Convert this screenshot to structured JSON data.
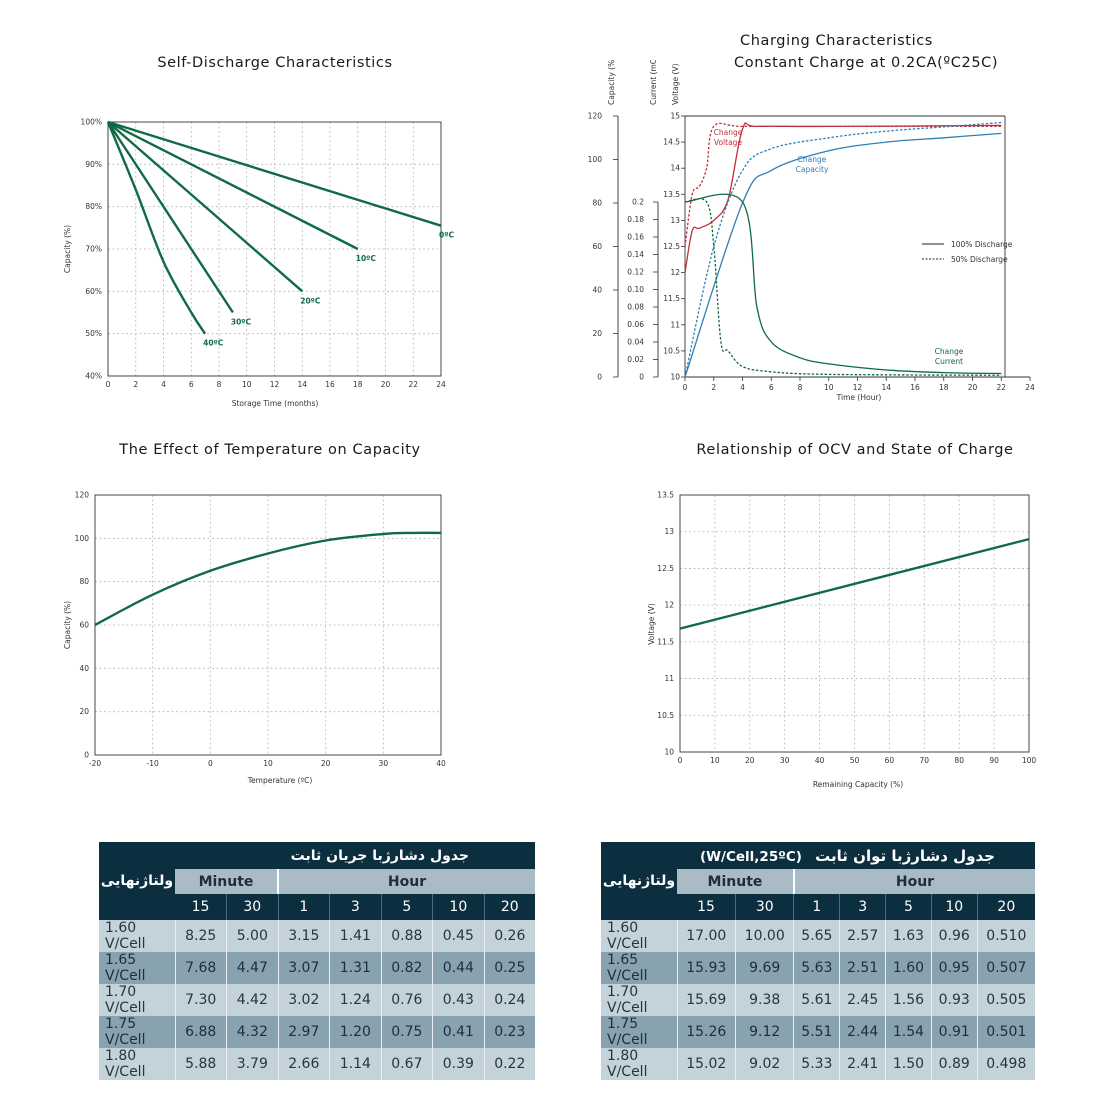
{
  "charts": {
    "self_discharge": {
      "title": "Self-Discharge Characteristics",
      "ylabel": "Capacity (%)",
      "xlabel": "Storage Time (months)",
      "yticks": [
        "40%",
        "50%",
        "60%",
        "70%",
        "80%",
        "90%",
        "100%"
      ],
      "xticks": [
        "0",
        "2",
        "4",
        "6",
        "8",
        "10",
        "12",
        "14",
        "16",
        "18",
        "20",
        "22",
        "24"
      ]
    },
    "charging": {
      "title_line1": "Charging Characteristics",
      "title_line2": "Constant Charge at 0.2CA(ºC25C)",
      "axis_capacity": "Capacity (%)",
      "axis_current": "Current (mCA)",
      "axis_voltage": "Voltage (V)",
      "xlabel": "Time (Hour)",
      "cap_ticks": [
        "0",
        "20",
        "40",
        "60",
        "80",
        "100",
        "120"
      ],
      "cur_ticks": [
        "0",
        "0.02",
        "0.04",
        "0.06",
        "0.08",
        "0.10",
        "0.12",
        "0.14",
        "0.16",
        "0.18",
        "0.2"
      ],
      "volt_ticks": [
        "10",
        "10.5",
        "11",
        "11.5",
        "12",
        "12.5",
        "13",
        "13.5",
        "14",
        "14.5",
        "15"
      ],
      "xticks": [
        "0",
        "2",
        "4",
        "6",
        "8",
        "10",
        "12",
        "14",
        "16",
        "18",
        "20",
        "22",
        "24"
      ],
      "label_voltage_1": "Change",
      "label_voltage_2": "Voltage",
      "label_capacity_1": "Change",
      "label_capacity_2": "Capacity",
      "label_current_1": "Change",
      "label_current_2": "Current",
      "legend_full": "100% Discharge",
      "legend_half": "50% Discharge"
    },
    "temperature": {
      "title": "The Effect of Temperature on Capacity",
      "ylabel": "Capacity (%)",
      "xlabel": "Temperature (ºC)",
      "yticks": [
        "0",
        "20",
        "40",
        "60",
        "80",
        "100",
        "120"
      ],
      "xticks": [
        "-20",
        "-10",
        "0",
        "10",
        "20",
        "30",
        "40"
      ]
    },
    "ocv": {
      "title": "Relationship of OCV and State of Charge",
      "ylabel": "Voltage (V)",
      "xlabel": "Remaining Capacity (%)",
      "yticks": [
        "10",
        "10.5",
        "11",
        "11.5",
        "12",
        "12.5",
        "13",
        "13.5"
      ],
      "xticks": [
        "0",
        "10",
        "20",
        "30",
        "40",
        "50",
        "60",
        "70",
        "80",
        "90",
        "100"
      ]
    }
  },
  "chart_data": [
    {
      "type": "line",
      "title": "Self-Discharge Characteristics",
      "xlabel": "Storage Time (months)",
      "ylabel": "Capacity (%)",
      "xlim": [
        0,
        24
      ],
      "ylim": [
        40,
        100
      ],
      "grid": true,
      "series": [
        {
          "name": "0ºC",
          "x": [
            0,
            24
          ],
          "y": [
            100,
            75.5
          ]
        },
        {
          "name": "10ºC",
          "x": [
            0,
            18
          ],
          "y": [
            100,
            70
          ]
        },
        {
          "name": "20ºC",
          "x": [
            0,
            14
          ],
          "y": [
            100,
            60
          ]
        },
        {
          "name": "30ºC",
          "x": [
            0,
            9
          ],
          "y": [
            100,
            55
          ]
        },
        {
          "name": "40ºC",
          "x": [
            0,
            2,
            4,
            6,
            7
          ],
          "y": [
            100,
            84,
            67,
            55,
            50
          ]
        }
      ]
    },
    {
      "type": "line",
      "title": "Charging Characteristics Constant Charge at 0.2CA(ºC25C)",
      "xlabel": "Time (Hour)",
      "xlim": [
        0,
        24
      ],
      "axes": {
        "capacity": [
          0,
          120
        ],
        "current": [
          0,
          0.2
        ],
        "voltage": [
          10,
          15
        ]
      },
      "grid": false,
      "series": [
        {
          "name": "Change Voltage",
          "axis": "voltage",
          "style": "100% Discharge",
          "x": [
            0,
            0.5,
            1,
            2,
            3,
            4,
            5,
            10,
            22
          ],
          "y": [
            12.0,
            12.8,
            12.85,
            13.0,
            13.4,
            14.75,
            14.8,
            14.8,
            14.82
          ]
        },
        {
          "name": "Change Voltage",
          "axis": "voltage",
          "style": "50% Discharge",
          "x": [
            0,
            0.5,
            1,
            1.5,
            2,
            4,
            10,
            22
          ],
          "y": [
            12.5,
            13.5,
            13.65,
            14.0,
            14.8,
            14.8,
            14.8,
            14.8
          ]
        },
        {
          "name": "Change Capacity",
          "axis": "capacity",
          "style": "100% Discharge",
          "x": [
            0,
            4,
            6,
            10,
            14,
            18,
            22
          ],
          "y": [
            0,
            80,
            95,
            104,
            108,
            110,
            112
          ]
        },
        {
          "name": "Change Capacity",
          "axis": "capacity",
          "style": "50% Discharge",
          "x": [
            0,
            2,
            4,
            6,
            10,
            14,
            18,
            22
          ],
          "y": [
            0,
            60,
            95,
            105,
            110,
            113,
            115,
            117
          ]
        },
        {
          "name": "Change Current",
          "axis": "current",
          "style": "100% Discharge",
          "x": [
            0,
            4,
            5,
            6,
            8,
            10,
            14,
            18,
            22
          ],
          "y": [
            0.2,
            0.2,
            0.08,
            0.04,
            0.022,
            0.015,
            0.008,
            0.005,
            0.004
          ]
        },
        {
          "name": "Change Current",
          "axis": "current",
          "style": "50% Discharge",
          "x": [
            0,
            1.5,
            2,
            2.5,
            3,
            4,
            6,
            10,
            22
          ],
          "y": [
            0.2,
            0.2,
            0.15,
            0.04,
            0.03,
            0.012,
            0.006,
            0.003,
            0.002
          ]
        }
      ],
      "legend": [
        "100% Discharge",
        "50% Discharge"
      ]
    },
    {
      "type": "line",
      "title": "The Effect of Temperature on Capacity",
      "xlabel": "Temperature (ºC)",
      "ylabel": "Capacity (%)",
      "xlim": [
        -20,
        40
      ],
      "ylim": [
        0,
        120
      ],
      "grid": true,
      "series": [
        {
          "x": [
            -20,
            -10,
            0,
            10,
            20,
            30,
            35,
            40
          ],
          "y": [
            60,
            74,
            85,
            93,
            99,
            102,
            102.5,
            102.5
          ]
        }
      ]
    },
    {
      "type": "line",
      "title": "Relationship of OCV and State of Charge",
      "xlabel": "Remaining Capacity (%)",
      "ylabel": "Voltage (V)",
      "xlim": [
        0,
        100
      ],
      "ylim": [
        10,
        13.5
      ],
      "grid": true,
      "series": [
        {
          "x": [
            0,
            100
          ],
          "y": [
            11.68,
            12.9
          ]
        }
      ]
    }
  ],
  "tables": {
    "current": {
      "title": "جدول دشارژبا جریان ثابت",
      "corner": "ولتاژنهایی",
      "group_minute": "Minute",
      "group_hour": "Hour",
      "columns": [
        "15",
        "30",
        "1",
        "3",
        "5",
        "10",
        "20"
      ],
      "rows": [
        {
          "label": "1.60 V/Cell",
          "values": [
            "8.25",
            "5.00",
            "3.15",
            "1.41",
            "0.88",
            "0.45",
            "0.26"
          ]
        },
        {
          "label": "1.65 V/Cell",
          "values": [
            "7.68",
            "4.47",
            "3.07",
            "1.31",
            "0.82",
            "0.44",
            "0.25"
          ]
        },
        {
          "label": "1.70 V/Cell",
          "values": [
            "7.30",
            "4.42",
            "3.02",
            "1.24",
            "0.76",
            "0.43",
            "0.24"
          ]
        },
        {
          "label": "1.75 V/Cell",
          "values": [
            "6.88",
            "4.32",
            "2.97",
            "1.20",
            "0.75",
            "0.41",
            "0.23"
          ]
        },
        {
          "label": "1.80 V/Cell",
          "values": [
            "5.88",
            "3.79",
            "2.66",
            "1.14",
            "0.67",
            "0.39",
            "0.22"
          ]
        }
      ]
    },
    "power": {
      "title": "جدول دشارژبا توان ثابت",
      "title_unit": "(W/Cell,25ºC)",
      "corner": "ولتاژنهایی",
      "group_minute": "Minute",
      "group_hour": "Hour",
      "columns": [
        "15",
        "30",
        "1",
        "3",
        "5",
        "10",
        "20"
      ],
      "rows": [
        {
          "label": "1.60 V/Cell",
          "values": [
            "17.00",
            "10.00",
            "5.65",
            "2.57",
            "1.63",
            "0.96",
            "0.510"
          ]
        },
        {
          "label": "1.65 V/Cell",
          "values": [
            "15.93",
            "9.69",
            "5.63",
            "2.51",
            "1.60",
            "0.95",
            "0.507"
          ]
        },
        {
          "label": "1.70 V/Cell",
          "values": [
            "15.69",
            "9.38",
            "5.61",
            "2.45",
            "1.56",
            "0.93",
            "0.505"
          ]
        },
        {
          "label": "1.75 V/Cell",
          "values": [
            "15.26",
            "9.12",
            "5.51",
            "2.44",
            "1.54",
            "0.91",
            "0.501"
          ]
        },
        {
          "label": "1.80 V/Cell",
          "values": [
            "15.02",
            "9.02",
            "5.33",
            "2.41",
            "1.50",
            "0.89",
            "0.498"
          ]
        }
      ]
    }
  },
  "colors": {
    "curve_green": "#0f6a45",
    "voltage_red": "#c0303a",
    "capacity_blue": "#2f7fb5",
    "table_header": "#0c2f40"
  }
}
